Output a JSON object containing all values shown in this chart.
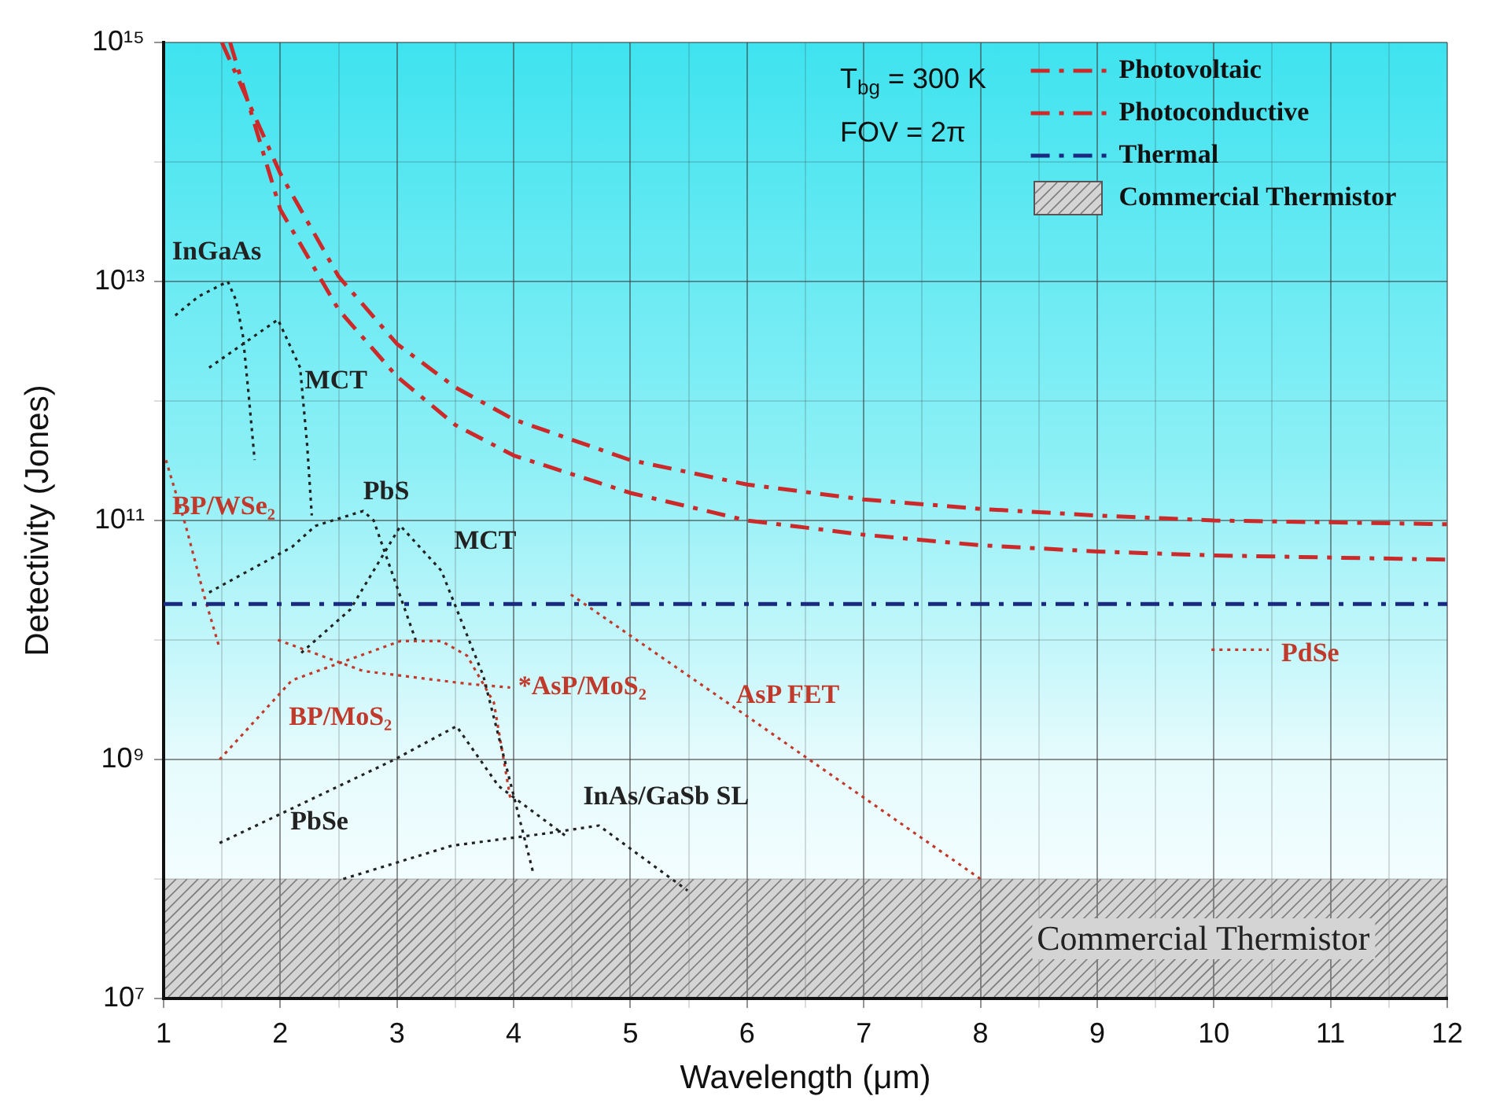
{
  "chart_data": {
    "type": "line",
    "xlabel": "Wavelength (μm)",
    "ylabel": "Detectivity (Jones)",
    "log": "y",
    "xlim": [
      1,
      12
    ],
    "xticks": [
      1,
      {
        "value": 1.5,
        "label": null
      },
      2,
      {
        "value": 2.5,
        "label": null
      },
      3,
      {
        "value": 3.5,
        "label": null
      },
      4,
      {
        "value": 4.5,
        "label": null
      },
      5,
      {
        "value": 5.5,
        "label": null
      },
      6,
      {
        "value": 6.5,
        "label": null
      },
      7,
      {
        "value": 7.5,
        "label": null
      },
      8,
      {
        "value": 8.5,
        "label": null
      },
      9,
      {
        "value": 9.5,
        "label": null
      },
      10,
      {
        "value": 10.5,
        "label": null
      },
      11,
      {
        "value": 11.5,
        "label": null
      },
      12
    ],
    "ylim": [
      10000000.0,
      1000000000000000.0
    ],
    "yticks": [
      {
        "value": 10000000.0,
        "label": "10⁷"
      },
      {
        "value": 100000000.0,
        "label": null
      },
      {
        "value": 1000000000.0,
        "label": "10⁹"
      },
      {
        "value": 10000000000.0,
        "label": null
      },
      {
        "value": 100000000000.0,
        "label": "10¹¹"
      },
      {
        "value": 1000000000000.0,
        "label": null
      },
      {
        "value": 10000000000000.0,
        "label": "10¹³"
      },
      {
        "value": 100000000000000.0,
        "label": null
      },
      {
        "value": 1000000000000000.0,
        "label": "10¹⁵"
      }
    ],
    "grid": true,
    "legend": "top right",
    "marker": "none",
    "series": [
      {
        "name": "Photovoltaic",
        "color": "#cc2a2a",
        "line_style": "dashed",
        "x": [
          1.5,
          2,
          2.5,
          3,
          3.5,
          4,
          5,
          6,
          7,
          8,
          9,
          10,
          12
        ],
        "values": [
          1000000000000000.0,
          80000000000000.0,
          11000000000000.0,
          3000000000000.0,
          1300000000000.0,
          700000000000.0,
          320000000000.0,
          200000000000.0,
          150000000000.0,
          125000000000.0,
          110000000000.0,
          100000000000.0,
          93000000000.0
        ]
      },
      {
        "name": "Photoconductive",
        "color": "#cc2a2a",
        "line_style": "dashed",
        "x": [
          1.57,
          2,
          2.5,
          3,
          3.5,
          4,
          5,
          6,
          7,
          8,
          9,
          10,
          12
        ],
        "values": [
          1000000000000000.0,
          40000000000000.0,
          5800000000000.0,
          1600000000000.0,
          630000000000.0,
          350000000000.0,
          170000000000.0,
          100000000000.0,
          76000000000.0,
          62000000000.0,
          55000000000.0,
          51000000000.0,
          47000000000.0
        ]
      },
      {
        "name": "Thermal",
        "color": "#1a2a80",
        "line_style": "dashed",
        "x": [
          1,
          12
        ],
        "values": [
          20000000000.0,
          20000000000.0
        ]
      },
      {
        "name": "InGaAs",
        "color": "#222222",
        "line_style": "dotted",
        "x": [
          1.1,
          1.3,
          1.55,
          1.62,
          1.68,
          1.73,
          1.78
        ],
        "values": [
          5200000000000.0,
          7500000000000.0,
          10000000000000.0,
          7000000000000.0,
          3500000000000.0,
          1100000000000.0,
          320000000000.0
        ]
      },
      {
        "name": "MCT",
        "color": "#222222",
        "line_style": "dotted",
        "x": [
          1.39,
          1.98,
          2.17,
          2.23,
          2.27
        ],
        "values": [
          1900000000000.0,
          4800000000000.0,
          1900000000000.0,
          430000000000.0,
          110000000000.0
        ]
      },
      {
        "name": "PbS",
        "color": "#222222",
        "line_style": "dotted",
        "x": [
          1.39,
          2.1,
          2.3,
          2.71,
          2.8,
          3.16
        ],
        "values": [
          25000000000.0,
          60000000000.0,
          90000000000.0,
          120000000000.0,
          100000000000.0,
          10000000000.0
        ]
      },
      {
        "name": "MCT",
        "color": "#222222",
        "line_style": "dotted",
        "x": [
          2.18,
          2.6,
          3.03,
          3.38,
          3.74,
          4.17
        ],
        "values": [
          7800000000.0,
          18000000000.0,
          90000000000.0,
          38000000000.0,
          5000000000.0,
          110000000.0
        ]
      },
      {
        "name": "BP/WSe₂",
        "color": "#c0392b",
        "line_style": "dotted",
        "x": [
          1.02,
          1.19,
          1.35,
          1.48
        ],
        "values": [
          320000000000.0,
          90000000000.0,
          23000000000.0,
          8500000000.0
        ]
      },
      {
        "name": "*AsP/MoS₂",
        "color": "#c0392b",
        "line_style": "dotted",
        "x": [
          1.98,
          2.71,
          3.6,
          3.97
        ],
        "values": [
          10000000000.0,
          5500000000.0,
          4300000000.0,
          4000000000.0
        ]
      },
      {
        "name": "BP/MoS₂",
        "color": "#c0392b",
        "line_style": "dotted",
        "x": [
          1.48,
          2.1,
          3.03,
          3.38,
          3.6,
          3.83,
          3.97
        ],
        "values": [
          1000000000.0,
          4600000000.0,
          9800000000.0,
          9800000000.0,
          7400000000.0,
          3000000000.0,
          480000000.0
        ]
      },
      {
        "name": "PbSe",
        "color": "#222222",
        "line_style": "dotted",
        "x": [
          1.48,
          2.98,
          3.51,
          3.87,
          4.47
        ],
        "values": [
          200000000.0,
          1000000000.0,
          1900000000.0,
          600000000.0,
          220000000.0
        ]
      },
      {
        "name": "InAs/GaSb SL",
        "color": "#222222",
        "line_style": "dotted",
        "x": [
          2.54,
          3.47,
          4.27,
          4.73,
          5.49
        ],
        "values": [
          100000000.0,
          190000000.0,
          240000000.0,
          280000000.0,
          80000000.0
        ]
      },
      {
        "name": "AsP FET",
        "color": "#c0392b",
        "line_style": "dotted",
        "x": [
          4.49,
          6,
          8
        ],
        "values": [
          24000000000.0,
          2300000000.0,
          100000000.0
        ]
      },
      {
        "name": "PdSe",
        "color": "#c0392b",
        "line_style": "dotted",
        "x": [
          9.98,
          10.47
        ],
        "values": [
          8300000000.0,
          8300000000.0
        ]
      }
    ],
    "bands": [
      {
        "axis": "y",
        "from": 10000000.0,
        "to": 100000000.0,
        "label": "Commercial Thermistor",
        "color": "#d4d4d4"
      }
    ],
    "annotations": [
      "T$_{bg}$ = 300 K",
      "FOV = 2π"
    ]
  }
}
